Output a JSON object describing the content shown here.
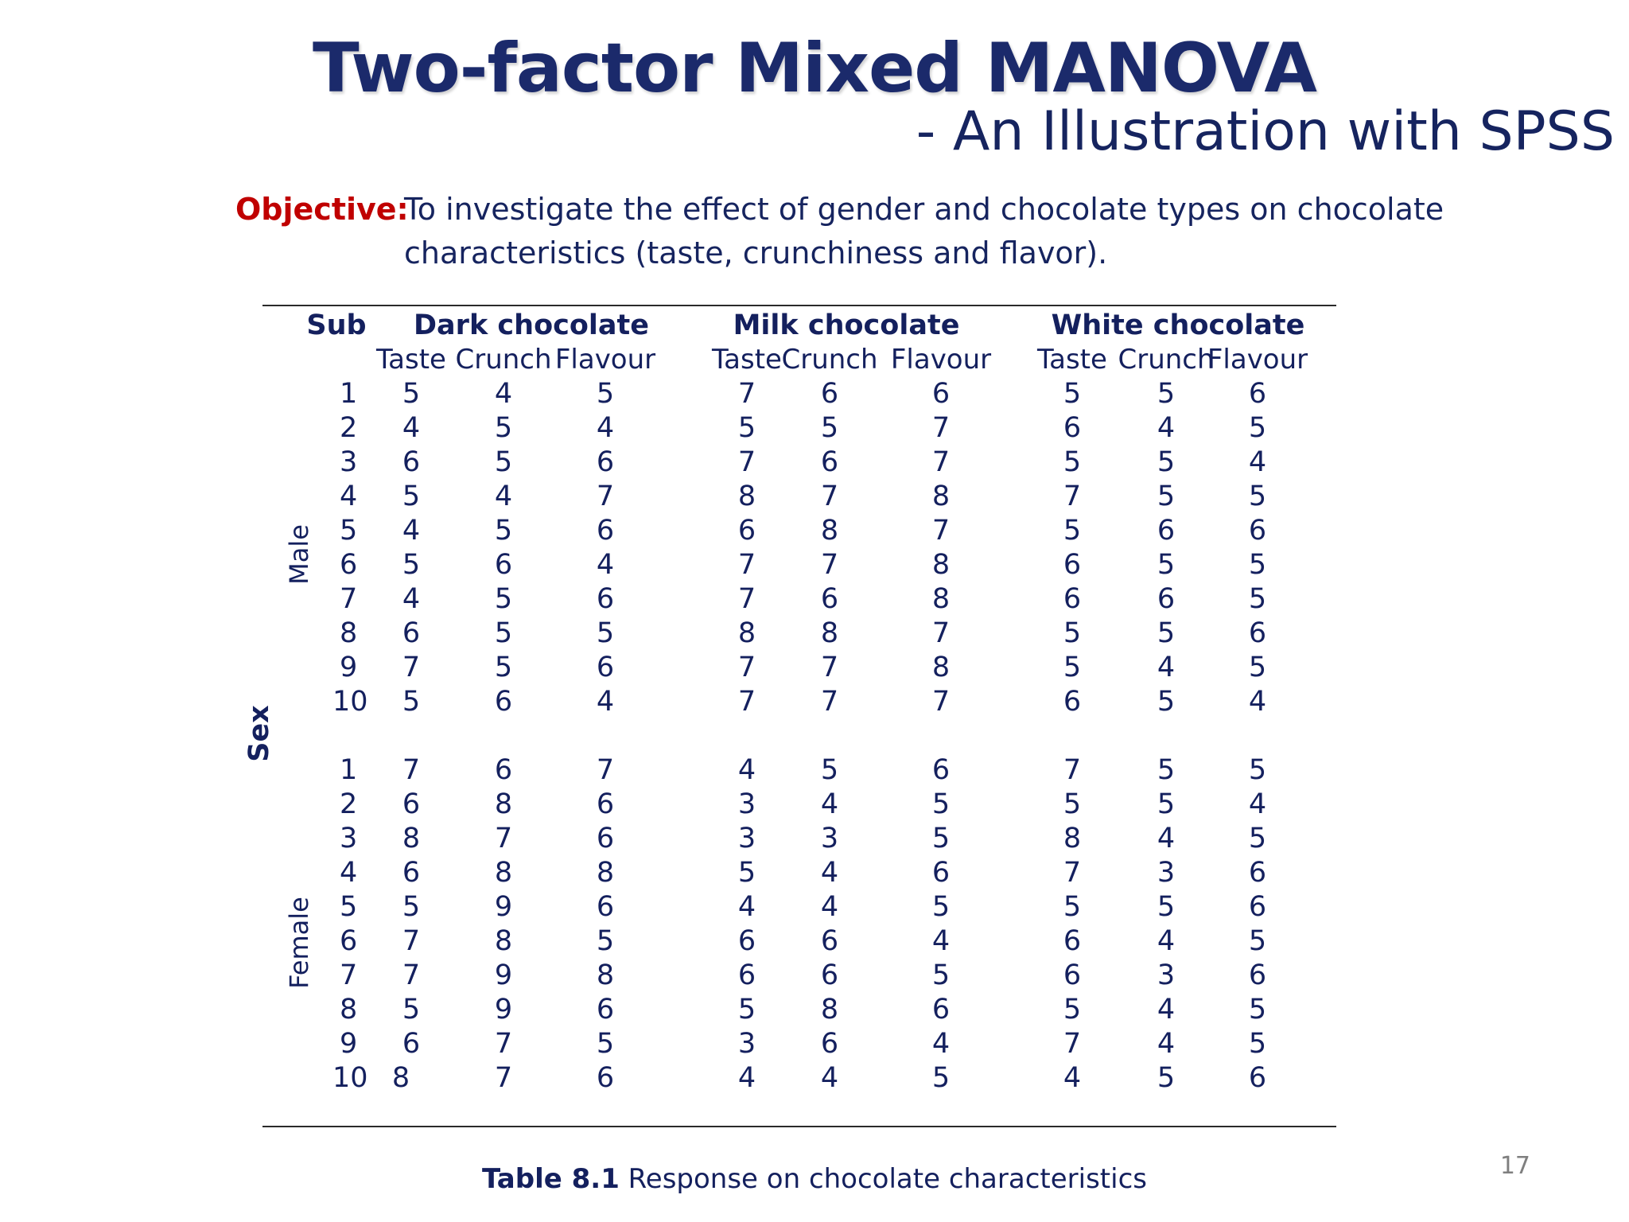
{
  "title": "Two-factor Mixed MANOVA",
  "subtitle": "- An Illustration with SPSS",
  "objective": {
    "label": "Objective:",
    "text": "To investigate the effect of gender and chocolate types on chocolate characteristics (taste, crunchiness and flavor)."
  },
  "table": {
    "sub_header": "Sub",
    "groups": [
      "Dark chocolate",
      "Milk chocolate",
      "White chocolate"
    ],
    "measures": [
      "Taste",
      "Crunch",
      "Flavour"
    ],
    "row_factor": "Sex",
    "sections": [
      {
        "label": "Male",
        "rows": [
          {
            "sub": "1",
            "values": [
              "5",
              "4",
              "5",
              "7",
              "6",
              "6",
              "5",
              "5",
              "6"
            ]
          },
          {
            "sub": "2",
            "values": [
              "4",
              "5",
              "4",
              "5",
              "5",
              "7",
              "6",
              "4",
              "5"
            ]
          },
          {
            "sub": "3",
            "values": [
              "6",
              "5",
              "6",
              "7",
              "6",
              "7",
              "5",
              "5",
              "4"
            ]
          },
          {
            "sub": "4",
            "values": [
              "5",
              "4",
              "7",
              "8",
              "7",
              "8",
              "7",
              "5",
              "5"
            ]
          },
          {
            "sub": "5",
            "values": [
              "4",
              "5",
              "6",
              "6",
              "8",
              "7",
              "5",
              "6",
              "6"
            ]
          },
          {
            "sub": "6",
            "values": [
              "5",
              "6",
              "4",
              "7",
              "7",
              "8",
              "6",
              "5",
              "5"
            ]
          },
          {
            "sub": "7",
            "values": [
              "4",
              "5",
              "6",
              "7",
              "6",
              "8",
              "6",
              "6",
              "5"
            ]
          },
          {
            "sub": "8",
            "values": [
              "6",
              "5",
              "5",
              "8",
              "8",
              "7",
              "5",
              "5",
              "6"
            ]
          },
          {
            "sub": "9",
            "values": [
              "7",
              "5",
              "6",
              "7",
              "7",
              "8",
              "5",
              "4",
              "5"
            ]
          },
          {
            "sub": "10",
            "values": [
              "5",
              "6",
              "4",
              "7",
              "7",
              "7",
              "6",
              "5",
              "4"
            ]
          }
        ]
      },
      {
        "label": "Female",
        "rows": [
          {
            "sub": "1",
            "values": [
              "7",
              "6",
              "7",
              "4",
              "5",
              "6",
              "7",
              "5",
              "5"
            ]
          },
          {
            "sub": "2",
            "values": [
              "6",
              "8",
              "6",
              "3",
              "4",
              "5",
              "5",
              "5",
              "4"
            ]
          },
          {
            "sub": "3",
            "values": [
              "8",
              "7",
              "6",
              "3",
              "3",
              "5",
              "8",
              "4",
              "5"
            ]
          },
          {
            "sub": "4",
            "values": [
              "6",
              "8",
              "8",
              "5",
              "4",
              "6",
              "7",
              "3",
              "6"
            ]
          },
          {
            "sub": "5",
            "values": [
              "5",
              "9",
              "6",
              "4",
              "4",
              "5",
              "5",
              "5",
              "6"
            ]
          },
          {
            "sub": "6",
            "values": [
              "7",
              "8",
              "5",
              "6",
              "6",
              "4",
              "6",
              "4",
              "5"
            ]
          },
          {
            "sub": "7",
            "values": [
              "7",
              "9",
              "8",
              "6",
              "6",
              "5",
              "6",
              "3",
              "6"
            ]
          },
          {
            "sub": "8",
            "values": [
              "5",
              "9",
              "6",
              "5",
              "8",
              "6",
              "5",
              "4",
              "5"
            ]
          },
          {
            "sub": "9",
            "values": [
              "6",
              "7",
              "5",
              "3",
              "6",
              "4",
              "7",
              "4",
              "5"
            ]
          },
          {
            "sub": "10",
            "values": [
              "8",
              "7",
              "6",
              "4",
              "4",
              "5",
              "4",
              "5",
              "6"
            ]
          }
        ]
      }
    ]
  },
  "caption": {
    "label": "Table 8.1",
    "text": " Response on chocolate characteristics"
  },
  "page_number": "17"
}
